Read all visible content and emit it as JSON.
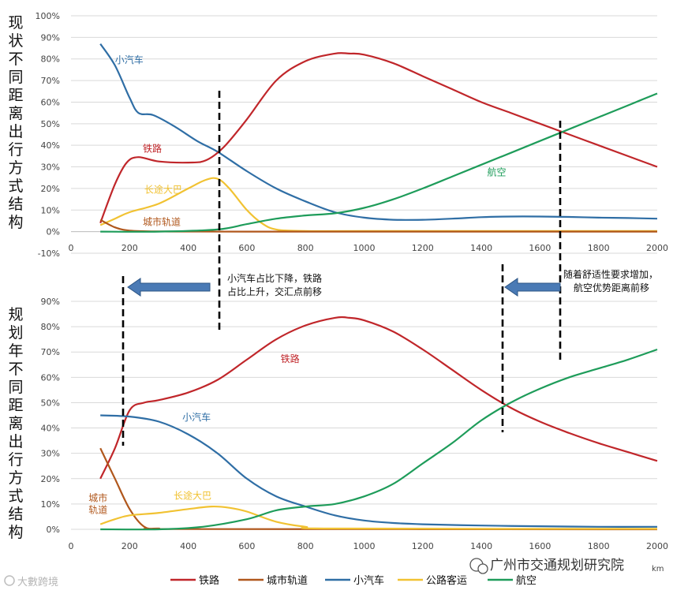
{
  "side_labels": {
    "top": "现状不同距离出行方式结构",
    "bottom": "规划年不同距离出行方式结构"
  },
  "colors": {
    "rail": "#c0262a",
    "metro": "#b0571c",
    "car": "#2f6ea5",
    "bus": "#f1c232",
    "air": "#1e9c5a",
    "arrow": "#4a7ab5"
  },
  "annotations": {
    "top_middle": [
      "小汽车占比下降，铁路",
      "占比上升，交汇点前移"
    ],
    "top_right": [
      "随着舒适性要求增加，",
      "航空优势距离前移"
    ]
  },
  "legend": [
    "铁路",
    "城市轨道",
    "小汽车",
    "公路客运",
    "航空"
  ],
  "footer": {
    "left_watermark": "大數跨境",
    "right_watermark": "广州市交通规划研究院",
    "unit": "km"
  },
  "chart_data": [
    {
      "name": "current",
      "type": "line",
      "title": "现状不同距离出行方式结构",
      "xlim": [
        0,
        2000
      ],
      "ylim": [
        -10,
        100
      ],
      "xticks": [
        "0",
        "200",
        "400",
        "600",
        "800",
        "1000",
        "1200",
        "1400",
        "1600",
        "1800",
        "2000"
      ],
      "yticks": [
        "-10%",
        "0%",
        "10%",
        "20%",
        "30%",
        "40%",
        "50%",
        "60%",
        "70%",
        "80%",
        "90%",
        "100%"
      ],
      "series": [
        {
          "key": "car",
          "name": "小汽车",
          "label": "小汽车",
          "label_at": [
            150,
            78
          ],
          "points": [
            [
              100,
              87
            ],
            [
              150,
              77
            ],
            [
              200,
              62
            ],
            [
              230,
              55
            ],
            [
              280,
              54
            ],
            [
              350,
              49
            ],
            [
              430,
              42
            ],
            [
              500,
              37
            ],
            [
              600,
              28
            ],
            [
              700,
              20
            ],
            [
              800,
              14
            ],
            [
              900,
              9
            ],
            [
              1000,
              6.5
            ],
            [
              1100,
              5.5
            ],
            [
              1200,
              5.5
            ],
            [
              1300,
              6
            ],
            [
              1400,
              6.7
            ],
            [
              1500,
              7
            ],
            [
              1600,
              7
            ],
            [
              1700,
              6.8
            ],
            [
              1800,
              6.5
            ],
            [
              1900,
              6.3
            ],
            [
              2000,
              6
            ]
          ]
        },
        {
          "key": "rail",
          "name": "铁路",
          "label": "铁路",
          "label_at": [
            245,
            37
          ],
          "points": [
            [
              100,
              4
            ],
            [
              150,
              22
            ],
            [
              190,
              32
            ],
            [
              230,
              34.5
            ],
            [
              300,
              32.5
            ],
            [
              400,
              32
            ],
            [
              460,
              33
            ],
            [
              520,
              39
            ],
            [
              600,
              52
            ],
            [
              700,
              70
            ],
            [
              800,
              79
            ],
            [
              900,
              82.5
            ],
            [
              950,
              82.5
            ],
            [
              1000,
              82
            ],
            [
              1100,
              78
            ],
            [
              1200,
              72
            ],
            [
              1300,
              66
            ],
            [
              1400,
              60
            ],
            [
              1500,
              55
            ],
            [
              1600,
              50
            ],
            [
              1700,
              45
            ],
            [
              1800,
              40
            ],
            [
              1900,
              35
            ],
            [
              2000,
              30
            ]
          ]
        },
        {
          "key": "bus",
          "name": "长途大巴",
          "label": "长途大巴",
          "label_at": [
            250,
            18
          ],
          "points": [
            [
              100,
              3
            ],
            [
              150,
              6
            ],
            [
              200,
              9
            ],
            [
              300,
              13
            ],
            [
              400,
              20
            ],
            [
              460,
              24
            ],
            [
              500,
              24.5
            ],
            [
              540,
              20
            ],
            [
              600,
              10
            ],
            [
              650,
              4
            ],
            [
              700,
              1
            ],
            [
              800,
              0.3
            ],
            [
              1000,
              0.3
            ],
            [
              2000,
              0.3
            ]
          ]
        },
        {
          "key": "metro",
          "name": "城市轨道",
          "label": "城市轨道",
          "label_at": [
            245,
            3
          ],
          "points": [
            [
              100,
              5.5
            ],
            [
              150,
              2
            ],
            [
              200,
              0.5
            ],
            [
              300,
              0.1
            ],
            [
              600,
              0
            ],
            [
              2000,
              0
            ]
          ]
        },
        {
          "key": "air",
          "name": "航空",
          "label": "航空",
          "label_at": [
            1420,
            26
          ],
          "points": [
            [
              100,
              0
            ],
            [
              300,
              0
            ],
            [
              500,
              1
            ],
            [
              600,
              3.5
            ],
            [
              700,
              6
            ],
            [
              800,
              7.5
            ],
            [
              900,
              8.5
            ],
            [
              1000,
              11
            ],
            [
              1100,
              15
            ],
            [
              1200,
              20
            ],
            [
              1300,
              25.5
            ],
            [
              1400,
              31
            ],
            [
              1500,
              36.5
            ],
            [
              1600,
              42
            ],
            [
              1700,
              47.5
            ],
            [
              1800,
              53
            ],
            [
              1900,
              58.5
            ],
            [
              2000,
              64
            ]
          ]
        }
      ]
    },
    {
      "name": "planned",
      "type": "line",
      "title": "规划年不同距离出行方式结构",
      "xlim": [
        0,
        2000
      ],
      "ylim": [
        0,
        90
      ],
      "xticks": [
        "0",
        "200",
        "400",
        "600",
        "800",
        "1000",
        "1200",
        "1400",
        "1600",
        "1800",
        "2000"
      ],
      "yticks": [
        "0%",
        "10%",
        "20%",
        "30%",
        "40%",
        "50%",
        "60%",
        "70%",
        "80%",
        "90%"
      ],
      "series": [
        {
          "key": "rail",
          "name": "铁路",
          "label": "铁路",
          "label_at": [
            715,
            66
          ],
          "points": [
            [
              100,
              20
            ],
            [
              150,
              32
            ],
            [
              200,
              47
            ],
            [
              250,
              50
            ],
            [
              300,
              51
            ],
            [
              400,
              54
            ],
            [
              500,
              59
            ],
            [
              600,
              67
            ],
            [
              700,
              75
            ],
            [
              800,
              80.5
            ],
            [
              900,
              83.5
            ],
            [
              950,
              83.5
            ],
            [
              1000,
              82.5
            ],
            [
              1100,
              78
            ],
            [
              1200,
              71
            ],
            [
              1300,
              63
            ],
            [
              1400,
              55
            ],
            [
              1500,
              48
            ],
            [
              1600,
              42.5
            ],
            [
              1700,
              38
            ],
            [
              1800,
              34
            ],
            [
              1900,
              30.5
            ],
            [
              2000,
              27
            ]
          ]
        },
        {
          "key": "car",
          "name": "小汽车",
          "label": "小汽车",
          "label_at": [
            380,
            43
          ],
          "points": [
            [
              100,
              45
            ],
            [
              200,
              44.5
            ],
            [
              300,
              42.5
            ],
            [
              400,
              37.5
            ],
            [
              500,
              30
            ],
            [
              600,
              20
            ],
            [
              700,
              13
            ],
            [
              800,
              9
            ],
            [
              900,
              5.5
            ],
            [
              1000,
              3.5
            ],
            [
              1100,
              2.5
            ],
            [
              1200,
              2
            ],
            [
              1400,
              1.5
            ],
            [
              1600,
              1.2
            ],
            [
              1800,
              1
            ],
            [
              2000,
              1
            ]
          ]
        },
        {
          "key": "metro",
          "name": "城市轨道",
          "label": "城市\n轨道",
          "label_at": [
            60,
            11
          ],
          "points": [
            [
              100,
              32
            ],
            [
              150,
              20
            ],
            [
              200,
              8
            ],
            [
              250,
              1
            ],
            [
              300,
              0.3
            ],
            [
              400,
              0.1
            ],
            [
              2000,
              0
            ]
          ]
        },
        {
          "key": "bus",
          "name": "长途大巴",
          "label": "长途大巴",
          "label_at": [
            350,
            12
          ],
          "points": [
            [
              100,
              2
            ],
            [
              150,
              4
            ],
            [
              200,
              5.5
            ],
            [
              300,
              6.5
            ],
            [
              400,
              8
            ],
            [
              480,
              9
            ],
            [
              540,
              8.5
            ],
            [
              600,
              7
            ],
            [
              700,
              3
            ],
            [
              800,
              1
            ],
            [
              900,
              0.3
            ],
            [
              2000,
              0.2
            ]
          ]
        },
        {
          "key": "air",
          "name": "航空",
          "label": "",
          "label_at": null,
          "points": [
            [
              100,
              0
            ],
            [
              300,
              0
            ],
            [
              450,
              1
            ],
            [
              600,
              4
            ],
            [
              700,
              7.5
            ],
            [
              800,
              9
            ],
            [
              900,
              10
            ],
            [
              1000,
              13
            ],
            [
              1100,
              18
            ],
            [
              1200,
              26
            ],
            [
              1300,
              34
            ],
            [
              1400,
              43
            ],
            [
              1500,
              50
            ],
            [
              1600,
              55.5
            ],
            [
              1700,
              60
            ],
            [
              1800,
              63.5
            ],
            [
              1900,
              67
            ],
            [
              2000,
              71
            ]
          ]
        }
      ]
    }
  ]
}
